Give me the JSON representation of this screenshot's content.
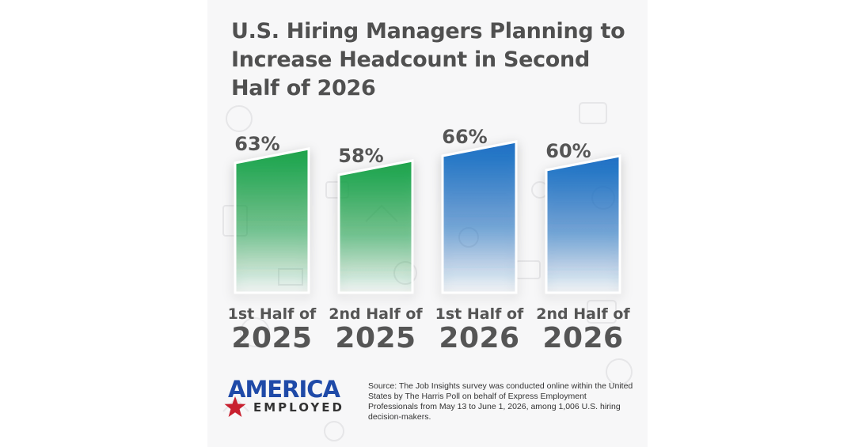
{
  "title": "U.S. Hiring Managers Planning to Increase Headcount in Second Half of 2026",
  "chart_data": {
    "type": "bar",
    "title": "U.S. Hiring Managers Planning to Increase Headcount in Second Half of 2026",
    "categories": [
      {
        "line1": "1st Half of",
        "line2": "2025"
      },
      {
        "line1": "2nd Half of",
        "line2": "2025"
      },
      {
        "line1": "1st Half of",
        "line2": "2026"
      },
      {
        "line1": "2nd Half of",
        "line2": "2026"
      }
    ],
    "values": [
      63,
      58,
      66,
      60
    ],
    "labels": [
      "63%",
      "58%",
      "66%",
      "60%"
    ],
    "colors": [
      "#1aa34a",
      "#1aa34a",
      "#1a6fc4",
      "#1a6fc4"
    ],
    "unit": "%",
    "xlabel": "",
    "ylabel": "",
    "grid": false
  },
  "footer": {
    "logo_top": "AMERICA",
    "logo_bottom": "EMPLOYED",
    "source": "Source: The Job Insights survey was conducted online within the United States by The Harris Poll on behalf of Express Employment Professionals from May 13 to June 1, 2026, among 1,006 U.S. hiring decision-makers."
  },
  "colors": {
    "green": "#1aa34a",
    "blue": "#1a6fc4",
    "logo_blue": "#1f4aa8",
    "logo_red": "#c8202f",
    "text": "#555555"
  }
}
